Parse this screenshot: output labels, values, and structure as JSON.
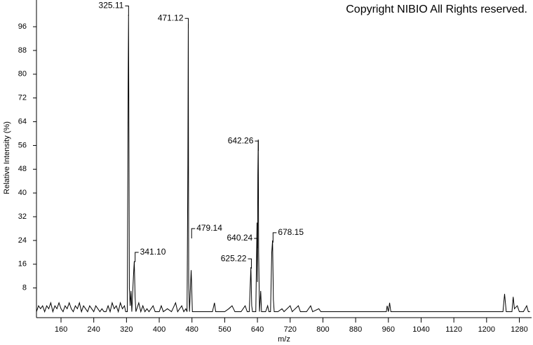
{
  "chart_data": {
    "type": "line",
    "copyright": "Copyright NIBIO All Rights reserved.",
    "x_label": "m/z",
    "y_label": "Relative Intensity (%)",
    "xlim": [
      100,
      1310
    ],
    "ylim": [
      -2,
      105
    ],
    "xticks": [
      160,
      240,
      320,
      400,
      480,
      560,
      640,
      720,
      800,
      880,
      960,
      1040,
      1120,
      1200,
      1280
    ],
    "yticks": [
      8,
      16,
      24,
      32,
      40,
      48,
      56,
      64,
      72,
      80,
      88,
      96
    ],
    "color": "#000000",
    "x": [
      100,
      105,
      110,
      115,
      120,
      125,
      130,
      135,
      140,
      145,
      150,
      155,
      160,
      165,
      170,
      175,
      180,
      185,
      190,
      195,
      200,
      205,
      210,
      215,
      220,
      225,
      230,
      235,
      240,
      245,
      250,
      255,
      260,
      265,
      270,
      275,
      280,
      285,
      290,
      295,
      300,
      305,
      310,
      315,
      318,
      322,
      324,
      325,
      326,
      327,
      329,
      331,
      333,
      337,
      339,
      341,
      343,
      350,
      355,
      360,
      365,
      370,
      375,
      385,
      390,
      400,
      405,
      410,
      420,
      430,
      440,
      445,
      455,
      460,
      465,
      468,
      470,
      471,
      472,
      474,
      478,
      479,
      481,
      500,
      530,
      535,
      538,
      560,
      570,
      578,
      585,
      600,
      610,
      615,
      620,
      624,
      626,
      628,
      636,
      639,
      640,
      641,
      642,
      643,
      645,
      648,
      650,
      660,
      665,
      668,
      672,
      675,
      677,
      679,
      681,
      690,
      700,
      705,
      720,
      725,
      740,
      745,
      760,
      770,
      775,
      790,
      795,
      955,
      957,
      960,
      963,
      966,
      1240,
      1244,
      1248,
      1262,
      1265,
      1268,
      1275,
      1280,
      1290,
      1298,
      1302,
      1306
    ],
    "values": [
      0,
      2,
      1,
      2,
      0,
      2,
      1,
      3,
      0,
      2,
      1,
      3,
      1,
      0,
      2,
      1,
      3,
      1,
      0,
      2,
      1,
      3,
      0,
      2,
      1,
      0,
      2,
      1,
      0,
      2,
      1,
      0,
      1,
      0,
      0,
      2,
      0,
      3,
      1,
      2,
      0,
      3,
      1,
      2,
      0,
      0,
      76,
      100,
      57,
      8,
      2,
      7,
      0,
      12,
      17,
      5,
      0,
      3,
      0,
      2,
      0,
      1,
      0,
      2,
      0,
      0,
      2,
      0,
      1,
      0,
      3,
      0,
      2,
      0,
      1,
      0,
      50,
      97,
      10,
      0,
      14,
      10,
      0,
      0,
      0,
      3,
      0,
      0,
      1,
      2,
      0,
      0,
      2,
      0,
      0,
      15,
      2,
      0,
      0,
      30,
      10,
      46,
      58,
      20,
      0,
      7,
      0,
      0,
      2,
      0,
      0,
      20,
      24,
      4,
      0,
      0,
      1,
      0,
      2,
      0,
      2,
      0,
      0,
      2,
      0,
      1,
      0,
      0,
      2,
      0,
      3,
      0,
      0,
      6,
      0,
      0,
      5,
      1,
      2,
      0,
      0,
      2,
      0,
      0
    ],
    "annotations": [
      {
        "text": "325.11",
        "x": 325.11,
        "y": 103
      },
      {
        "text": "471.12",
        "x": 471.12,
        "y": 98.8
      },
      {
        "text": "341.10",
        "x": 341.1,
        "y": 20
      },
      {
        "text": "642.26",
        "x": 642.26,
        "y": 57.5
      },
      {
        "text": "479.14",
        "x": 479.14,
        "y": 28
      },
      {
        "text": "640.24",
        "x": 640.24,
        "y": 24.7
      },
      {
        "text": "625.22",
        "x": 625.22,
        "y": 17.8
      },
      {
        "text": "678.15",
        "x": 678.15,
        "y": 26.6
      }
    ]
  }
}
